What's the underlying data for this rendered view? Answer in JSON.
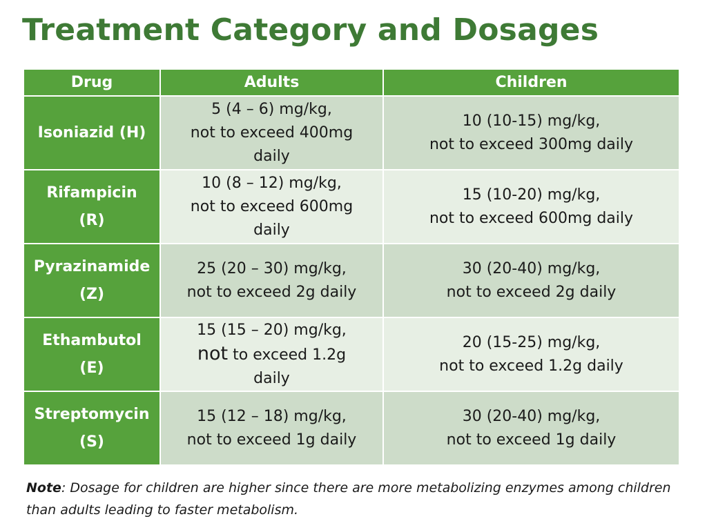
{
  "title": "Treatment Category and Dosages",
  "table": {
    "headers": [
      "Drug",
      "Adults",
      "Children"
    ],
    "rows": [
      {
        "drug": [
          "Isoniazid (H)"
        ],
        "adults": [
          "5 (4 – 6) mg/kg,",
          "not to exceed 400mg",
          "daily"
        ],
        "children": [
          "10 (10-15) mg/kg,",
          "not to exceed 300mg daily"
        ]
      },
      {
        "drug": [
          "Rifampicin",
          "(R)"
        ],
        "adults": [
          "10 (8 – 12) mg/kg,",
          "not to exceed 600mg",
          "daily"
        ],
        "children": [
          "15 (10-20) mg/kg,",
          "not to exceed 600mg daily"
        ]
      },
      {
        "drug": [
          "Pyrazinamide",
          "(Z)"
        ],
        "adults": [
          "25 (20 – 30) mg/kg,",
          "not to exceed 2g daily"
        ],
        "children": [
          "30 (20-40) mg/kg,",
          "not to exceed 2g daily"
        ]
      },
      {
        "drug": [
          "Ethambutol",
          "(E)"
        ],
        "adults": [
          "15 (15 – 20) mg/kg,",
          "not",
          " to exceed 1.2g",
          "daily"
        ],
        "children": [
          "20 (15-25) mg/kg,",
          "not to exceed 1.2g daily"
        ]
      },
      {
        "drug": [
          "Streptomycin",
          "(S)"
        ],
        "adults": [
          "15 (12 – 18) mg/kg,",
          "not to exceed 1g daily"
        ],
        "children": [
          "30 (20-40) mg/kg,",
          "not to exceed 1g daily"
        ]
      }
    ]
  },
  "note": {
    "label": "Note",
    "text": ": Dosage for children are higher since there are more metabolizing enzymes among children than adults leading to faster metabolism."
  },
  "colors": {
    "title": "#3e7a35",
    "header_green": "#56a23c",
    "row_dark": "#cddcc9",
    "row_light": "#e7efe4"
  }
}
